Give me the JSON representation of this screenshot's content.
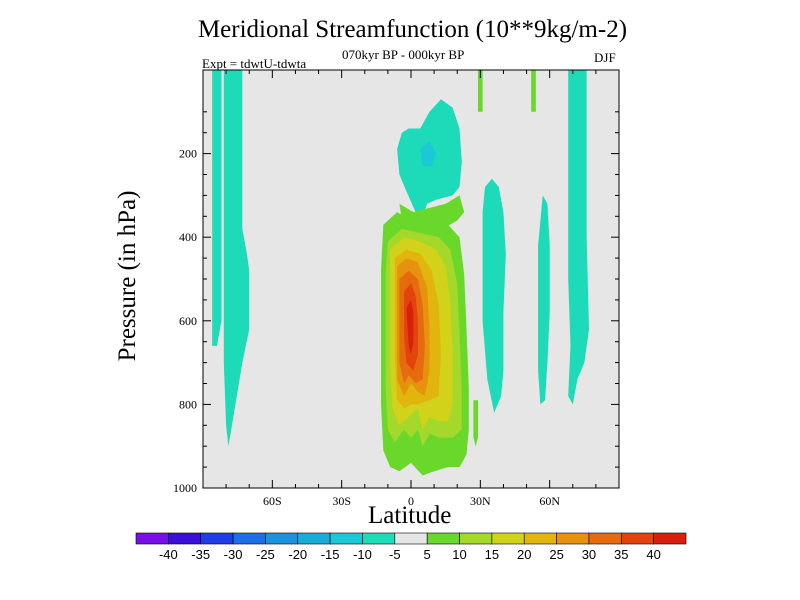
{
  "chart_data": {
    "type": "heatmap",
    "title": "Meridional Streamfunction (10**9kg/m-2)",
    "subtitle": "070kyr BP - 000kyr BP",
    "annotation_left": "Expt = tdwtU-tdwta",
    "annotation_right": "DJF",
    "xlabel": "Latitude",
    "ylabel": "Pressure (in hPa)",
    "xlim": [
      -90,
      90
    ],
    "ylim": [
      1000,
      0
    ],
    "x_ticks": [
      {
        "value": -60,
        "label": "60S"
      },
      {
        "value": -30,
        "label": "30S"
      },
      {
        "value": 0,
        "label": "0"
      },
      {
        "value": 30,
        "label": "30N"
      },
      {
        "value": 60,
        "label": "60N"
      }
    ],
    "y_ticks": [
      {
        "value": 200,
        "label": "200"
      },
      {
        "value": 400,
        "label": "400"
      },
      {
        "value": 600,
        "label": "600"
      },
      {
        "value": 800,
        "label": "800"
      },
      {
        "value": 1000,
        "label": "1000"
      }
    ],
    "background_color": "#e6e6e6",
    "colorbar": {
      "levels": [
        "-40",
        "-35",
        "-30",
        "-25",
        "-20",
        "-15",
        "-10",
        "-5",
        "5",
        "10",
        "15",
        "20",
        "25",
        "30",
        "35",
        "40"
      ],
      "colors": [
        "#7a0ee6",
        "#3a10d8",
        "#1f3ee6",
        "#1c6fe6",
        "#1b93dd",
        "#1aacd9",
        "#1cc8d6",
        "#1ddbb8",
        "#e6e6e6",
        "#6ad82a",
        "#a4d82a",
        "#d2d21a",
        "#e2b50e",
        "#e6920e",
        "#e66a0e",
        "#e3440e",
        "#d8200e"
      ]
    },
    "regions": [
      {
        "name": "neg-south-band-a",
        "level": -10,
        "points": [
          [
            -86,
            -6
          ],
          [
            -82,
            -6
          ],
          [
            -82,
            60
          ],
          [
            -84,
            66
          ],
          [
            -86,
            66
          ]
        ]
      },
      {
        "name": "neg-south-band-b",
        "level": -10,
        "points": [
          [
            -81,
            -6
          ],
          [
            -73,
            -6
          ],
          [
            -73,
            38
          ],
          [
            -71,
            44
          ],
          [
            -70,
            48
          ],
          [
            -70,
            62
          ],
          [
            -73,
            70
          ],
          [
            -76,
            80
          ],
          [
            -79,
            90
          ],
          [
            -80,
            85
          ],
          [
            -81,
            70
          ]
        ]
      },
      {
        "name": "neg-upper-cell",
        "level": -10,
        "points": [
          [
            -4,
            15
          ],
          [
            -1,
            14
          ],
          [
            4,
            14
          ],
          [
            8,
            10
          ],
          [
            13,
            7
          ],
          [
            18,
            9
          ],
          [
            21,
            14
          ],
          [
            22,
            22
          ],
          [
            21,
            28
          ],
          [
            18,
            30
          ],
          [
            11,
            31
          ],
          [
            7,
            32
          ],
          [
            5,
            35
          ],
          [
            2,
            34
          ],
          [
            -2,
            29
          ],
          [
            -5,
            25
          ],
          [
            -6,
            19
          ]
        ]
      },
      {
        "name": "neg-upper-core",
        "level": -15,
        "points": [
          [
            4,
            19
          ],
          [
            8,
            17
          ],
          [
            11,
            20
          ],
          [
            9,
            23
          ],
          [
            5,
            23
          ]
        ]
      },
      {
        "name": "neg-upper-green",
        "level": 5,
        "points": [
          [
            -5,
            32
          ],
          [
            1,
            34
          ],
          [
            8,
            33
          ],
          [
            15,
            32
          ],
          [
            21,
            30
          ],
          [
            23,
            34
          ],
          [
            20,
            36
          ],
          [
            14,
            38
          ],
          [
            4,
            38
          ],
          [
            -4,
            36
          ]
        ]
      },
      {
        "name": "neg-north-band-a",
        "level": -10,
        "points": [
          [
            32,
            28
          ],
          [
            35,
            26
          ],
          [
            38,
            28
          ],
          [
            40,
            34
          ],
          [
            41,
            44
          ],
          [
            40,
            58
          ],
          [
            40,
            72
          ],
          [
            39,
            78
          ],
          [
            36,
            82
          ],
          [
            33,
            74
          ],
          [
            31,
            60
          ],
          [
            31,
            46
          ],
          [
            31,
            34
          ]
        ]
      },
      {
        "name": "neg-north-band-b",
        "level": -10,
        "points": [
          [
            57,
            30
          ],
          [
            59,
            32
          ],
          [
            60,
            42
          ],
          [
            60,
            58
          ],
          [
            59,
            70
          ],
          [
            58,
            79
          ],
          [
            56,
            80
          ],
          [
            55,
            72
          ],
          [
            55,
            56
          ],
          [
            55,
            42
          ]
        ]
      },
      {
        "name": "neg-north-band-c",
        "level": -10,
        "points": [
          [
            68,
            -6
          ],
          [
            76,
            -6
          ],
          [
            76,
            40
          ],
          [
            77,
            62
          ],
          [
            75,
            70
          ],
          [
            72,
            74
          ],
          [
            70,
            80
          ],
          [
            68,
            78
          ],
          [
            69,
            66
          ],
          [
            68,
            50
          ],
          [
            68,
            30
          ]
        ]
      },
      {
        "name": "pos-polar-sliver-a",
        "level": 5,
        "points": [
          [
            29,
            -6
          ],
          [
            31,
            -6
          ],
          [
            31,
            10
          ],
          [
            29,
            10
          ]
        ]
      },
      {
        "name": "pos-polar-sliver-b",
        "level": 5,
        "points": [
          [
            52,
            -6
          ],
          [
            54,
            -6
          ],
          [
            54,
            10
          ],
          [
            52,
            10
          ]
        ]
      },
      {
        "name": "pos-cell-outer",
        "level": 5,
        "points": [
          [
            -12,
            37
          ],
          [
            -6,
            34
          ],
          [
            0,
            36
          ],
          [
            8,
            35
          ],
          [
            16,
            37
          ],
          [
            21,
            40
          ],
          [
            23,
            49
          ],
          [
            24,
            62
          ],
          [
            25,
            76
          ],
          [
            25,
            86
          ],
          [
            24,
            92
          ],
          [
            21,
            95
          ],
          [
            16,
            95
          ],
          [
            10,
            96
          ],
          [
            5,
            97
          ],
          [
            0,
            94
          ],
          [
            -5,
            96
          ],
          [
            -9,
            95
          ],
          [
            -12,
            91
          ],
          [
            -13,
            80
          ],
          [
            -13,
            62
          ],
          [
            -13,
            48
          ]
        ]
      },
      {
        "name": "pos-cell-10",
        "level": 10,
        "points": [
          [
            -10,
            41
          ],
          [
            -4,
            38
          ],
          [
            4,
            39
          ],
          [
            12,
            40
          ],
          [
            17,
            43
          ],
          [
            20,
            51
          ],
          [
            21,
            63
          ],
          [
            22,
            77
          ],
          [
            22,
            86
          ],
          [
            18,
            88
          ],
          [
            12,
            88
          ],
          [
            8,
            87
          ],
          [
            5,
            90
          ],
          [
            3,
            86
          ],
          [
            0,
            88
          ],
          [
            -3,
            86
          ],
          [
            -7,
            89
          ],
          [
            -10,
            86
          ],
          [
            -11,
            76
          ],
          [
            -11,
            60
          ],
          [
            -11,
            49
          ]
        ]
      },
      {
        "name": "pos-cell-15",
        "level": 15,
        "points": [
          [
            -9,
            43
          ],
          [
            -3,
            40
          ],
          [
            4,
            41
          ],
          [
            11,
            43
          ],
          [
            15,
            47
          ],
          [
            17,
            56
          ],
          [
            18,
            68
          ],
          [
            18,
            80
          ],
          [
            16,
            84
          ],
          [
            12,
            84
          ],
          [
            8,
            83
          ],
          [
            5,
            86
          ],
          [
            3,
            81
          ],
          [
            -1,
            83
          ],
          [
            -5,
            85
          ],
          [
            -8,
            81
          ],
          [
            -9,
            71
          ],
          [
            -9,
            56
          ]
        ]
      },
      {
        "name": "pos-cell-20",
        "level": 20,
        "points": [
          [
            -7,
            45
          ],
          [
            -2,
            43
          ],
          [
            4,
            44
          ],
          [
            9,
            48
          ],
          [
            12,
            56
          ],
          [
            13,
            68
          ],
          [
            12,
            78
          ],
          [
            8,
            79
          ],
          [
            3,
            80
          ],
          [
            0,
            80
          ],
          [
            -3,
            81
          ],
          [
            -6,
            79
          ],
          [
            -7,
            68
          ],
          [
            -7,
            54
          ]
        ]
      },
      {
        "name": "pos-cell-25",
        "level": 25,
        "points": [
          [
            -6,
            47
          ],
          [
            -2,
            45
          ],
          [
            3,
            46
          ],
          [
            7,
            52
          ],
          [
            8,
            62
          ],
          [
            8,
            72
          ],
          [
            6,
            78
          ],
          [
            3,
            77
          ],
          [
            0,
            75
          ],
          [
            -3,
            78
          ],
          [
            -6,
            74
          ],
          [
            -6,
            62
          ],
          [
            -6,
            54
          ]
        ]
      },
      {
        "name": "pos-cell-30",
        "level": 30,
        "points": [
          [
            -5,
            50
          ],
          [
            -1,
            48
          ],
          [
            3,
            50
          ],
          [
            5,
            56
          ],
          [
            6,
            66
          ],
          [
            5,
            74
          ],
          [
            2,
            75
          ],
          [
            -1,
            73
          ],
          [
            -3,
            75
          ],
          [
            -5,
            70
          ],
          [
            -5,
            60
          ]
        ]
      },
      {
        "name": "pos-cell-35",
        "level": 35,
        "points": [
          [
            -3,
            53
          ],
          [
            0,
            51
          ],
          [
            2,
            54
          ],
          [
            3,
            60
          ],
          [
            3,
            68
          ],
          [
            1,
            72
          ],
          [
            -2,
            70
          ],
          [
            -3,
            64
          ]
        ]
      },
      {
        "name": "pos-cell-40",
        "level": 40,
        "points": [
          [
            -2,
            57
          ],
          [
            0,
            55
          ],
          [
            1,
            58
          ],
          [
            1,
            65
          ],
          [
            0,
            68
          ],
          [
            -1,
            66
          ]
        ]
      },
      {
        "name": "pos-tail",
        "level": 5,
        "points": [
          [
            27,
            79
          ],
          [
            29,
            79
          ],
          [
            29,
            88
          ],
          [
            28,
            90
          ],
          [
            27,
            88
          ]
        ]
      }
    ]
  }
}
